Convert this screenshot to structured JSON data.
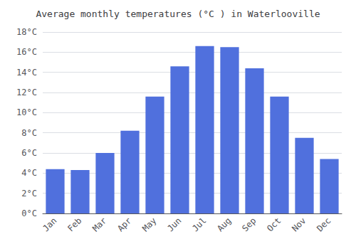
{
  "chart_data": {
    "type": "bar",
    "title": "Average monthly temperatures (°C ) in Waterlooville",
    "categories": [
      "Jan",
      "Feb",
      "Mar",
      "Apr",
      "May",
      "Jun",
      "Jul",
      "Aug",
      "Sep",
      "Oct",
      "Nov",
      "Dec"
    ],
    "values": [
      4.4,
      4.3,
      6.0,
      8.2,
      11.6,
      14.6,
      16.6,
      16.5,
      14.4,
      11.6,
      7.5,
      5.4
    ],
    "ylim": [
      0,
      18
    ],
    "yticks": [
      {
        "value": 0,
        "label": "0°C"
      },
      {
        "value": 2,
        "label": "2°C"
      },
      {
        "value": 4,
        "label": "4°C"
      },
      {
        "value": 6,
        "label": "6°C"
      },
      {
        "value": 8,
        "label": "8°C"
      },
      {
        "value": 10,
        "label": "10°C"
      },
      {
        "value": 12,
        "label": "12°C"
      },
      {
        "value": 14,
        "label": "14°C"
      },
      {
        "value": 16,
        "label": "16°C"
      },
      {
        "value": 18,
        "label": "18°C"
      }
    ],
    "grid": true
  }
}
